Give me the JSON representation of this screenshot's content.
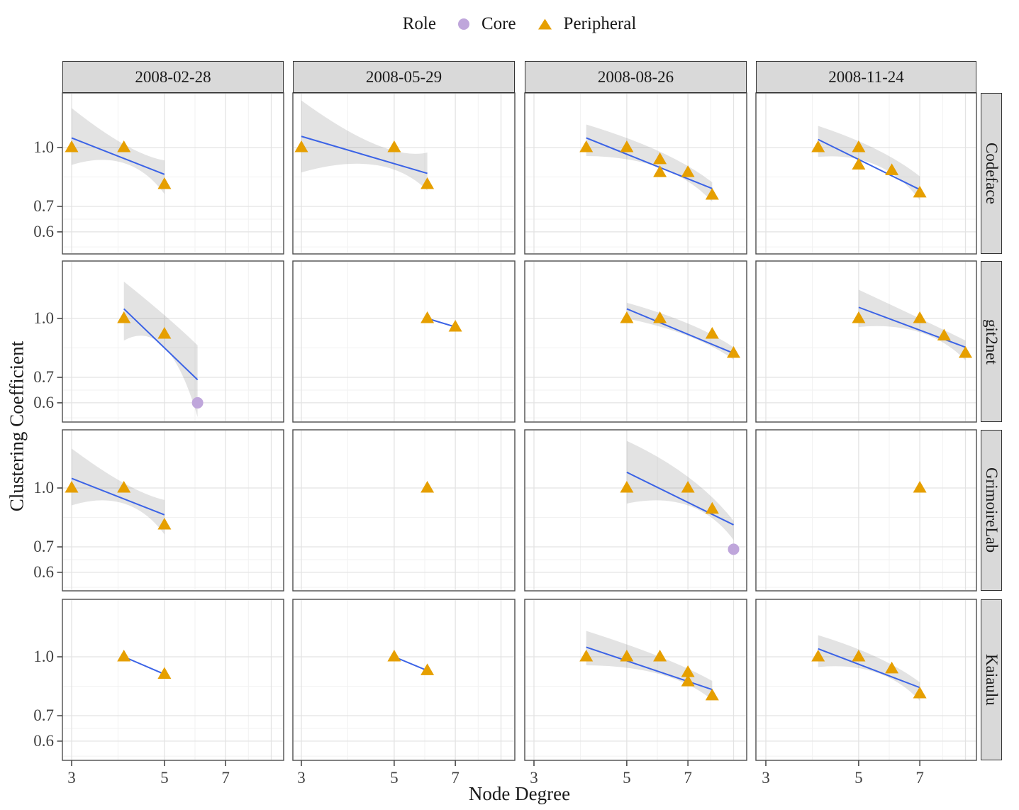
{
  "chart_data": {
    "type": "scatter",
    "title": "",
    "xlabel": "Node Degree",
    "ylabel": "Clustering Coefficient",
    "x_scale": "log10",
    "y_scale": "log10",
    "x_range": [
      2.85,
      9.56
    ],
    "y_range": [
      0.525,
      1.39
    ],
    "x_ticks": [
      {
        "label": "3",
        "value": 3
      },
      {
        "label": "5",
        "value": 5
      },
      {
        "label": "7",
        "value": 7
      }
    ],
    "y_ticks": [
      {
        "label": "1.0",
        "value": 1.0
      },
      {
        "label": "0.7",
        "value": 0.7
      },
      {
        "label": "0.6",
        "value": 0.6
      }
    ],
    "grid": {
      "x_major": [
        3,
        5,
        7,
        9
      ],
      "x_minor": [
        3.873,
        5.916,
        7.937
      ],
      "y_major": [
        1.0,
        0.7,
        0.6
      ],
      "y_minor": [
        0.8367,
        0.6481,
        0.5477
      ]
    },
    "col_facets": [
      "2008-02-28",
      "2008-05-29",
      "2008-08-26",
      "2008-11-24"
    ],
    "row_facets": [
      "Codeface",
      "git2net",
      "GrimoireLab",
      "Kaiaulu"
    ],
    "legend": {
      "title": "Role",
      "entries": [
        {
          "label": "Core",
          "marker": "circle",
          "color": "#BFA6DB"
        },
        {
          "label": "Peripheral",
          "marker": "triangle",
          "color": "#E69F00"
        }
      ]
    },
    "colors": {
      "smooth_line": "#3B63E6",
      "band": "rgba(128,128,128,0.22)",
      "grid_major": "#e3e3e3",
      "grid_minor": "#f2f2f2",
      "strip_bg": "#d9d9d9",
      "panel_border": "#4d4d4d",
      "tick_mark": "#333333",
      "text": "#1a1a1a",
      "tick_text": "#404040"
    },
    "panels": [
      {
        "r": 0,
        "c": 0,
        "project": "Codeface",
        "date": "2008-02-28",
        "points": [
          {
            "x": 3,
            "y": 1.0,
            "role": "Peripheral"
          },
          {
            "x": 4,
            "y": 1.0,
            "role": "Peripheral"
          },
          {
            "x": 5,
            "y": 0.8,
            "role": "Peripheral"
          }
        ],
        "line": {
          "x": [
            3,
            5
          ],
          "y": [
            1.06,
            0.85
          ]
        },
        "band": {
          "x": [
            3,
            4,
            5
          ],
          "lo": [
            0.9,
            0.91,
            0.755
          ],
          "hi": [
            1.27,
            1.02,
            0.925
          ]
        }
      },
      {
        "r": 0,
        "c": 1,
        "project": "Codeface",
        "date": "2008-05-29",
        "points": [
          {
            "x": 3,
            "y": 1.0,
            "role": "Peripheral"
          },
          {
            "x": 5,
            "y": 1.0,
            "role": "Peripheral"
          },
          {
            "x": 6,
            "y": 0.8,
            "role": "Peripheral"
          }
        ],
        "line": {
          "x": [
            3,
            6
          ],
          "y": [
            1.07,
            0.855
          ]
        },
        "band": {
          "x": [
            3,
            4.5,
            6
          ],
          "lo": [
            0.86,
            0.9,
            0.77
          ],
          "hi": [
            1.33,
            1.02,
            0.97
          ]
        }
      },
      {
        "r": 0,
        "c": 2,
        "project": "Codeface",
        "date": "2008-08-26",
        "points": [
          {
            "x": 4,
            "y": 1.0,
            "role": "Peripheral"
          },
          {
            "x": 5,
            "y": 1.0,
            "role": "Peripheral"
          },
          {
            "x": 6,
            "y": 0.93,
            "role": "Peripheral"
          },
          {
            "x": 6,
            "y": 0.86,
            "role": "Peripheral"
          },
          {
            "x": 7,
            "y": 0.86,
            "role": "Peripheral"
          },
          {
            "x": 8,
            "y": 0.75,
            "role": "Peripheral"
          }
        ],
        "line": {
          "x": [
            4,
            8
          ],
          "y": [
            1.06,
            0.78
          ]
        },
        "band": {
          "x": [
            4,
            6,
            8
          ],
          "lo": [
            0.95,
            0.885,
            0.72
          ],
          "hi": [
            1.15,
            0.975,
            0.81
          ]
        }
      },
      {
        "r": 0,
        "c": 3,
        "project": "Codeface",
        "date": "2008-11-24",
        "points": [
          {
            "x": 4,
            "y": 1.0,
            "role": "Peripheral"
          },
          {
            "x": 5,
            "y": 1.0,
            "role": "Peripheral"
          },
          {
            "x": 5,
            "y": 0.9,
            "role": "Peripheral"
          },
          {
            "x": 6,
            "y": 0.87,
            "role": "Peripheral"
          },
          {
            "x": 7,
            "y": 0.76,
            "role": "Peripheral"
          }
        ],
        "line": {
          "x": [
            4,
            7
          ],
          "y": [
            1.05,
            0.775
          ]
        },
        "band": {
          "x": [
            4,
            5.5,
            7
          ],
          "lo": [
            0.945,
            0.9,
            0.727
          ],
          "hi": [
            1.14,
            0.99,
            0.84
          ]
        }
      },
      {
        "r": 1,
        "c": 0,
        "project": "git2net",
        "date": "2008-02-28",
        "points": [
          {
            "x": 4,
            "y": 1.0,
            "role": "Peripheral"
          },
          {
            "x": 5,
            "y": 0.91,
            "role": "Peripheral"
          },
          {
            "x": 6,
            "y": 0.6,
            "role": "Core"
          }
        ],
        "line": {
          "x": [
            4,
            6
          ],
          "y": [
            1.06,
            0.69
          ]
        },
        "band": {
          "x": [
            4,
            5,
            6
          ],
          "lo": [
            0.875,
            0.84,
            0.55
          ],
          "hi": [
            1.25,
            1.02,
            0.85
          ]
        }
      },
      {
        "r": 1,
        "c": 1,
        "project": "git2net",
        "date": "2008-05-29",
        "points": [
          {
            "x": 6,
            "y": 1.0,
            "role": "Peripheral"
          },
          {
            "x": 7,
            "y": 0.95,
            "role": "Peripheral"
          }
        ],
        "line": {
          "x": [
            6,
            7
          ],
          "y": [
            1.0,
            0.95
          ]
        },
        "band": null
      },
      {
        "r": 1,
        "c": 2,
        "project": "git2net",
        "date": "2008-08-26",
        "points": [
          {
            "x": 5,
            "y": 1.0,
            "role": "Peripheral"
          },
          {
            "x": 6,
            "y": 1.0,
            "role": "Peripheral"
          },
          {
            "x": 8,
            "y": 0.91,
            "role": "Peripheral"
          },
          {
            "x": 9,
            "y": 0.81,
            "role": "Peripheral"
          }
        ],
        "line": {
          "x": [
            5,
            9
          ],
          "y": [
            1.06,
            0.81
          ]
        },
        "band": {
          "x": [
            5,
            7,
            9
          ],
          "lo": [
            1.0,
            0.9,
            0.78
          ],
          "hi": [
            1.1,
            0.97,
            0.84
          ]
        }
      },
      {
        "r": 1,
        "c": 3,
        "project": "git2net",
        "date": "2008-11-24",
        "points": [
          {
            "x": 5,
            "y": 1.0,
            "role": "Peripheral"
          },
          {
            "x": 7,
            "y": 1.0,
            "role": "Peripheral"
          },
          {
            "x": 8,
            "y": 0.9,
            "role": "Peripheral"
          },
          {
            "x": 9,
            "y": 0.81,
            "role": "Peripheral"
          }
        ],
        "line": {
          "x": [
            5,
            9
          ],
          "y": [
            1.07,
            0.84
          ]
        },
        "band": {
          "x": [
            5,
            7,
            9
          ],
          "lo": [
            0.95,
            0.92,
            0.776
          ],
          "hi": [
            1.19,
            1.0,
            0.875
          ]
        }
      },
      {
        "r": 2,
        "c": 0,
        "project": "GrimoireLab",
        "date": "2008-02-28",
        "points": [
          {
            "x": 3,
            "y": 1.0,
            "role": "Peripheral"
          },
          {
            "x": 4,
            "y": 1.0,
            "role": "Peripheral"
          },
          {
            "x": 5,
            "y": 0.8,
            "role": "Peripheral"
          }
        ],
        "line": {
          "x": [
            3,
            5
          ],
          "y": [
            1.06,
            0.85
          ]
        },
        "band": {
          "x": [
            3,
            4,
            5
          ],
          "lo": [
            0.9,
            0.91,
            0.755
          ],
          "hi": [
            1.27,
            1.03,
            0.93
          ]
        }
      },
      {
        "r": 2,
        "c": 1,
        "project": "GrimoireLab",
        "date": "2008-05-29",
        "points": [
          {
            "x": 6,
            "y": 1.0,
            "role": "Peripheral"
          }
        ],
        "line": null,
        "band": null
      },
      {
        "r": 2,
        "c": 2,
        "project": "GrimoireLab",
        "date": "2008-08-26",
        "points": [
          {
            "x": 5,
            "y": 1.0,
            "role": "Peripheral"
          },
          {
            "x": 7,
            "y": 1.0,
            "role": "Peripheral"
          },
          {
            "x": 8,
            "y": 0.88,
            "role": "Peripheral"
          },
          {
            "x": 9,
            "y": 0.69,
            "role": "Core"
          }
        ],
        "line": {
          "x": [
            5,
            9
          ],
          "y": [
            1.1,
            0.8
          ]
        },
        "band": {
          "x": [
            5,
            7,
            9
          ],
          "lo": [
            0.91,
            0.9,
            0.73
          ],
          "hi": [
            1.33,
            1.07,
            0.82
          ]
        }
      },
      {
        "r": 2,
        "c": 3,
        "project": "GrimoireLab",
        "date": "2008-11-24",
        "points": [
          {
            "x": 7,
            "y": 1.0,
            "role": "Peripheral"
          }
        ],
        "line": null,
        "band": null
      },
      {
        "r": 3,
        "c": 0,
        "project": "Kaiaulu",
        "date": "2008-02-28",
        "points": [
          {
            "x": 4,
            "y": 1.0,
            "role": "Peripheral"
          },
          {
            "x": 5,
            "y": 0.9,
            "role": "Peripheral"
          }
        ],
        "line": {
          "x": [
            4,
            5
          ],
          "y": [
            1.0,
            0.9
          ]
        },
        "band": null
      },
      {
        "r": 3,
        "c": 1,
        "project": "Kaiaulu",
        "date": "2008-05-29",
        "points": [
          {
            "x": 5,
            "y": 1.0,
            "role": "Peripheral"
          },
          {
            "x": 6,
            "y": 0.92,
            "role": "Peripheral"
          }
        ],
        "line": {
          "x": [
            5,
            6
          ],
          "y": [
            1.0,
            0.92
          ]
        },
        "band": null
      },
      {
        "r": 3,
        "c": 2,
        "project": "Kaiaulu",
        "date": "2008-08-26",
        "points": [
          {
            "x": 4,
            "y": 1.0,
            "role": "Peripheral"
          },
          {
            "x": 5,
            "y": 1.0,
            "role": "Peripheral"
          },
          {
            "x": 6,
            "y": 1.0,
            "role": "Peripheral"
          },
          {
            "x": 7,
            "y": 0.91,
            "role": "Peripheral"
          },
          {
            "x": 7,
            "y": 0.86,
            "role": "Peripheral"
          },
          {
            "x": 8,
            "y": 0.79,
            "role": "Peripheral"
          }
        ],
        "line": {
          "x": [
            4,
            8
          ],
          "y": [
            1.06,
            0.82
          ]
        },
        "band": {
          "x": [
            4,
            6,
            8
          ],
          "lo": [
            0.95,
            0.9,
            0.77
          ],
          "hi": [
            1.17,
            1.0,
            0.864
          ]
        }
      },
      {
        "r": 3,
        "c": 3,
        "project": "Kaiaulu",
        "date": "2008-11-24",
        "points": [
          {
            "x": 4,
            "y": 1.0,
            "role": "Peripheral"
          },
          {
            "x": 5,
            "y": 1.0,
            "role": "Peripheral"
          },
          {
            "x": 6,
            "y": 0.93,
            "role": "Peripheral"
          },
          {
            "x": 7,
            "y": 0.8,
            "role": "Peripheral"
          }
        ],
        "line": {
          "x": [
            4,
            7
          ],
          "y": [
            1.05,
            0.83
          ]
        },
        "band": {
          "x": [
            4,
            5.5,
            7
          ],
          "lo": [
            0.94,
            0.91,
            0.766
          ],
          "hi": [
            1.14,
            1.0,
            0.857
          ]
        }
      }
    ]
  }
}
